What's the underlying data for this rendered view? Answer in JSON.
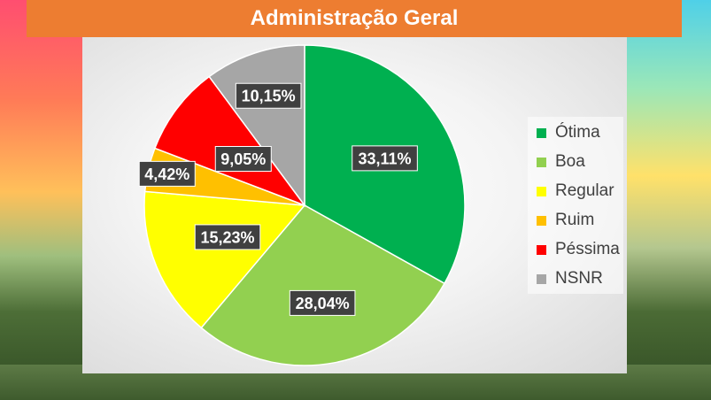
{
  "title": "Administração Geral",
  "chart_data": {
    "type": "pie",
    "title": "Administração Geral",
    "labels": [
      "Ótima",
      "Boa",
      "Regular",
      "Ruim",
      "Péssima",
      "NSNR"
    ],
    "values": [
      33.11,
      28.04,
      15.23,
      4.42,
      9.05,
      10.15
    ],
    "value_labels": [
      "33,11%",
      "28,04%",
      "15,23%",
      "4,42%",
      "9,05%",
      "10,15%"
    ],
    "colors": [
      "#00b050",
      "#92d050",
      "#ffff00",
      "#ffc000",
      "#ff0000",
      "#a6a6a6"
    ],
    "legend_position": "right"
  }
}
